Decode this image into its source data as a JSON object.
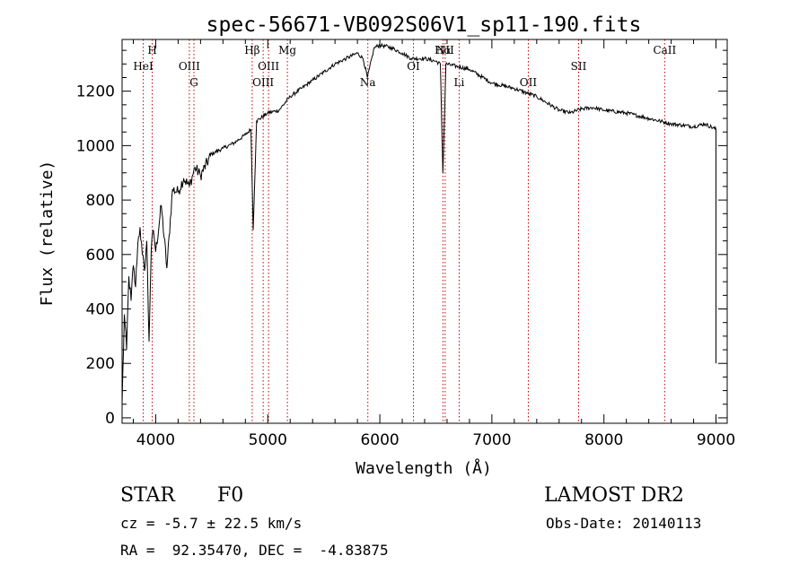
{
  "chart_data": {
    "type": "line",
    "title": "spec-56671-VB092S06V1_sp11-190.fits",
    "xlabel": "Wavelength (Å)",
    "ylabel": "Flux (relative)",
    "xlim": [
      3700,
      9100
    ],
    "ylim": [
      -20,
      1390
    ],
    "xticks": [
      4000,
      5000,
      6000,
      7000,
      8000,
      9000
    ],
    "yticks": [
      0,
      200,
      400,
      600,
      800,
      1000,
      1200
    ],
    "grid": false,
    "series": [
      {
        "x": [
          3700,
          3720,
          3740,
          3760,
          3780,
          3800,
          3820,
          3840,
          3860,
          3880,
          3900,
          3920,
          3940,
          3960,
          3980,
          4000,
          4050,
          4100,
          4150,
          4200,
          4250,
          4300,
          4350,
          4400,
          4500,
          4600,
          4700,
          4800,
          4850,
          4870,
          4900,
          5000,
          5100,
          5200,
          5300,
          5400,
          5500,
          5600,
          5700,
          5800,
          5850,
          5890,
          5950,
          6000,
          6100,
          6200,
          6280,
          6400,
          6500,
          6540,
          6563,
          6590,
          6700,
          6800,
          7000,
          7200,
          7400,
          7600,
          7700,
          7800,
          7900,
          8000,
          8200,
          8400,
          8500,
          8600,
          8700,
          8800,
          8900,
          9000,
          9000
        ],
        "y": [
          50,
          380,
          250,
          520,
          430,
          560,
          480,
          640,
          700,
          600,
          540,
          650,
          280,
          620,
          690,
          610,
          780,
          550,
          840,
          830,
          880,
          850,
          920,
          890,
          970,
          990,
          1010,
          1040,
          1060,
          690,
          1090,
          1120,
          1130,
          1180,
          1210,
          1240,
          1270,
          1300,
          1320,
          1340,
          1320,
          1250,
          1360,
          1370,
          1360,
          1340,
          1320,
          1320,
          1310,
          1300,
          900,
          1300,
          1290,
          1280,
          1230,
          1210,
          1180,
          1130,
          1120,
          1135,
          1140,
          1130,
          1120,
          1100,
          1090,
          1080,
          1075,
          1070,
          1080,
          1060,
          200
        ]
      }
    ],
    "lines": [
      {
        "label": "HeI",
        "x": 3889,
        "row": 1
      },
      {
        "label": "H",
        "x": 3969,
        "row": 0
      },
      {
        "label": "OIII",
        "x": 4300,
        "row": 1
      },
      {
        "label": "G",
        "x": 4341,
        "row": 2
      },
      {
        "label": "Hβ",
        "x": 4861,
        "row": 0
      },
      {
        "label": "OIII",
        "x": 4959,
        "row": 2
      },
      {
        "label": "OIII",
        "x": 5007,
        "row": 1
      },
      {
        "label": "Mg",
        "x": 5175,
        "row": 0
      },
      {
        "label": "Na",
        "x": 5893,
        "row": 2
      },
      {
        "label": "OI",
        "x": 6300,
        "row": 1
      },
      {
        "label": "Hα",
        "x": 6563,
        "row": 0
      },
      {
        "label": "NII",
        "x": 6583,
        "row": 0
      },
      {
        "label": "Li",
        "x": 6708,
        "row": 2
      },
      {
        "label": "OII",
        "x": 7325,
        "row": 2
      },
      {
        "label": "SII",
        "x": 7774,
        "row": 1
      },
      {
        "label": "CaII",
        "x": 8542,
        "row": 0
      }
    ]
  },
  "info": {
    "object_class": "STAR",
    "subclass": "F0",
    "survey": "LAMOST DR2",
    "cz": "cz = -5.7 ± 22.5 km/s",
    "obs_date": "Obs-Date: 20140113",
    "coords": "RA =  92.35470, DEC =  -4.83875"
  }
}
